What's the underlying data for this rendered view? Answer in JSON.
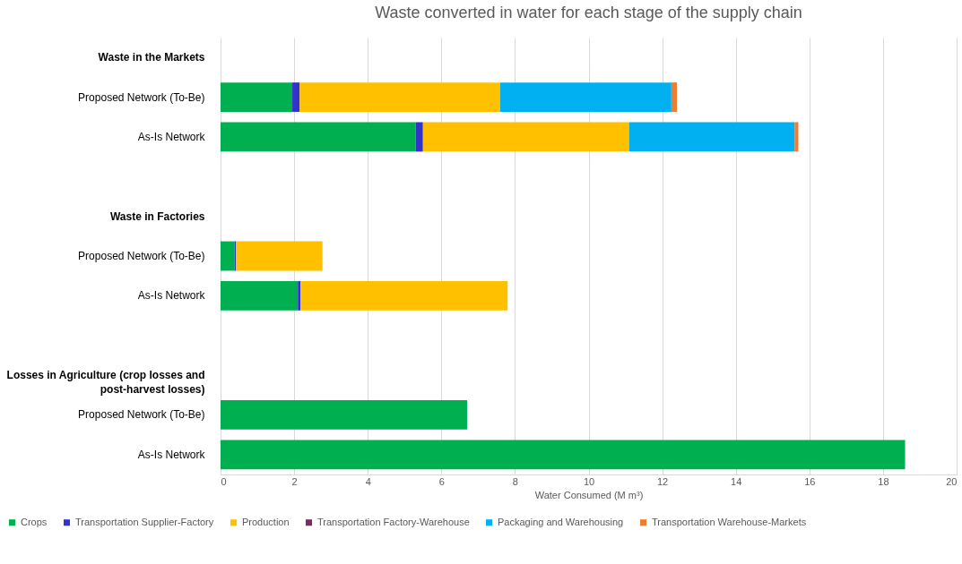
{
  "chart_data": {
    "type": "bar",
    "orientation": "horizontal",
    "stacked": true,
    "title": "Waste converted in water for each stage of the supply chain",
    "xlabel": "Water Consumed (M m³)",
    "categories": [
      "Waste in the Markets",
      "Proposed Network (To-Be)",
      "As-Is Network",
      null,
      "Waste in Factories",
      "Proposed Network (To-Be)",
      "As-Is Network",
      null,
      "Losses in Agriculture (crop losses and post-harvest losses)",
      "Proposed Network (To-Be)",
      "As-Is Network"
    ],
    "series": [
      {
        "name": "Crops",
        "color": "#00b050",
        "values": [
          null,
          1.95,
          5.3,
          null,
          null,
          0.38,
          2.1,
          null,
          null,
          6.7,
          18.6
        ]
      },
      {
        "name": "Transportation Supplier-Factory",
        "color": "#3333cc",
        "values": [
          null,
          0.2,
          0.2,
          null,
          null,
          0.04,
          0.07,
          null,
          null,
          null,
          null
        ]
      },
      {
        "name": "Production",
        "color": "#ffc000",
        "values": [
          null,
          5.45,
          5.6,
          null,
          null,
          2.35,
          5.63,
          null,
          null,
          null,
          null
        ]
      },
      {
        "name": "Transportation Factory-Warehouse",
        "color": "#7b2c5f",
        "values": [
          null,
          null,
          null,
          null,
          null,
          null,
          null,
          null,
          null,
          null,
          null
        ]
      },
      {
        "name": "Packaging and Warehousing",
        "color": "#00b0f0",
        "values": [
          null,
          4.65,
          4.5,
          null,
          null,
          null,
          null,
          null,
          null,
          null,
          null
        ]
      },
      {
        "name": "Transportation Warehouse-Markets",
        "color": "#ed7d31",
        "values": [
          null,
          0.15,
          0.1,
          null,
          null,
          null,
          null,
          null,
          null,
          null,
          null
        ]
      }
    ],
    "xlim": [
      0,
      20
    ],
    "xticks": [
      0,
      2,
      4,
      6,
      8,
      10,
      12,
      14,
      16,
      18,
      20
    ],
    "grid": "x",
    "legend": "bottom"
  }
}
